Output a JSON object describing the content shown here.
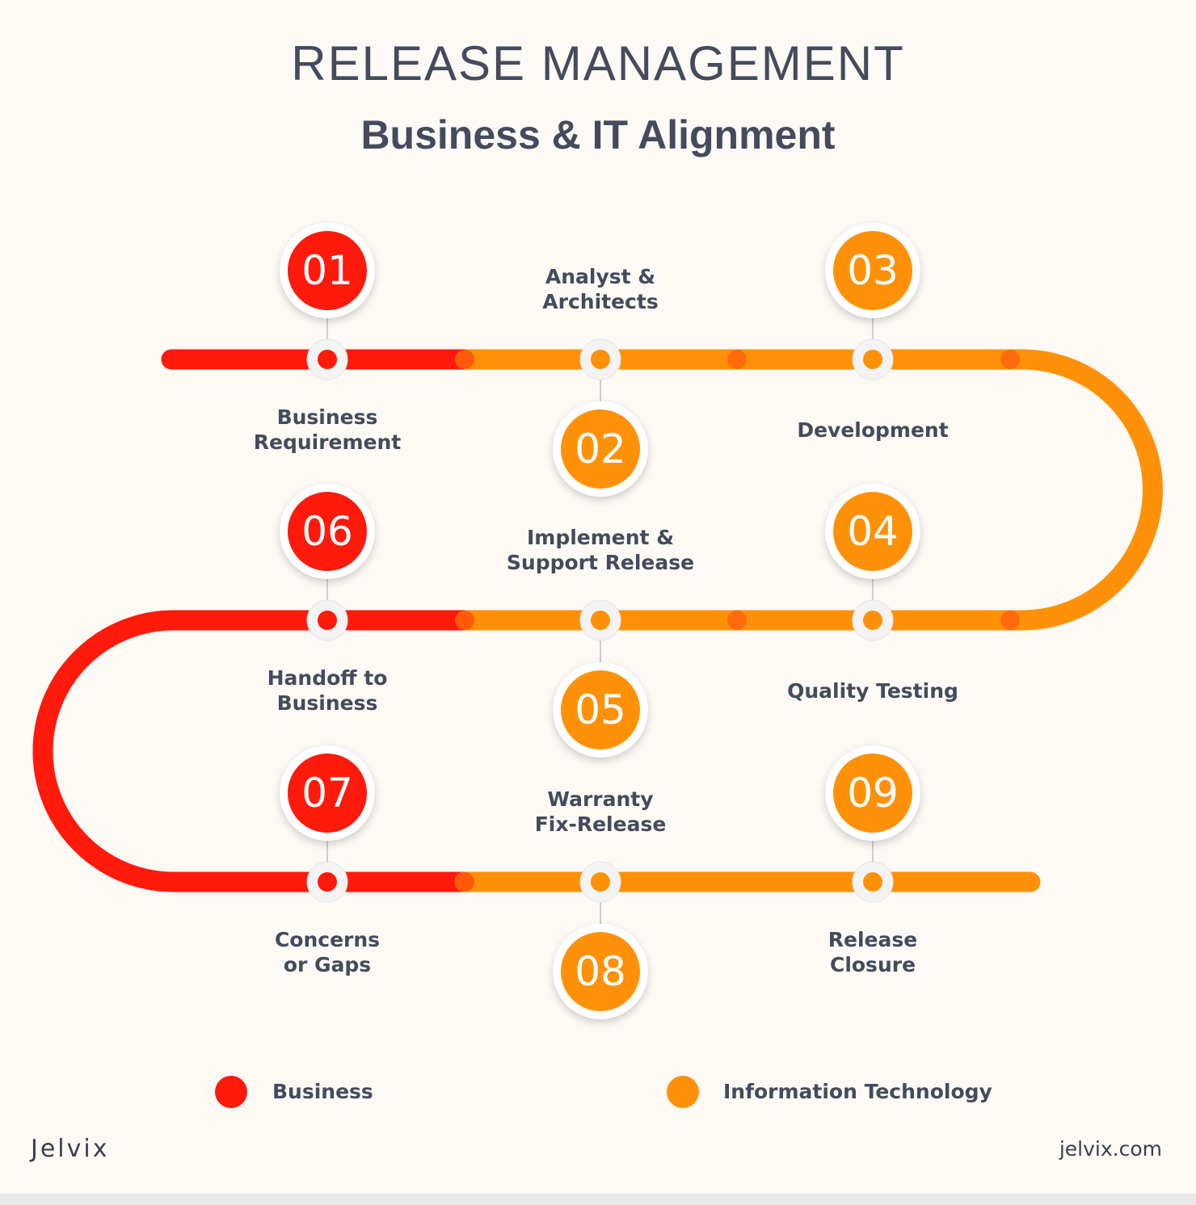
{
  "title": "RELEASE MANAGEMENT",
  "subtitle": "Business & IT Alignment",
  "colors": {
    "business": "#ff1a0c",
    "it": "#ff9109",
    "text": "#434b5c",
    "background": "#fdf9f5"
  },
  "steps": [
    {
      "number": "01",
      "label": "Business\nRequirement",
      "category": "business"
    },
    {
      "number": "02",
      "label": "Analyst &\nArchitects",
      "category": "it"
    },
    {
      "number": "03",
      "label": "Development",
      "category": "it"
    },
    {
      "number": "04",
      "label": "Quality Testing",
      "category": "it"
    },
    {
      "number": "05",
      "label": "Implement &\nSupport Release",
      "category": "it"
    },
    {
      "number": "06",
      "label": "Handoff to\nBusiness",
      "category": "business"
    },
    {
      "number": "07",
      "label": "Concerns\nor Gaps",
      "category": "business"
    },
    {
      "number": "08",
      "label": "Warranty\nFix-Release",
      "category": "it"
    },
    {
      "number": "09",
      "label": "Release\nClosure",
      "category": "it"
    }
  ],
  "legend": [
    {
      "label": "Business",
      "category": "business"
    },
    {
      "label": "Information Technology",
      "category": "it"
    }
  ],
  "footer": {
    "logo": "Jelvix",
    "site": "jelvix.com"
  }
}
